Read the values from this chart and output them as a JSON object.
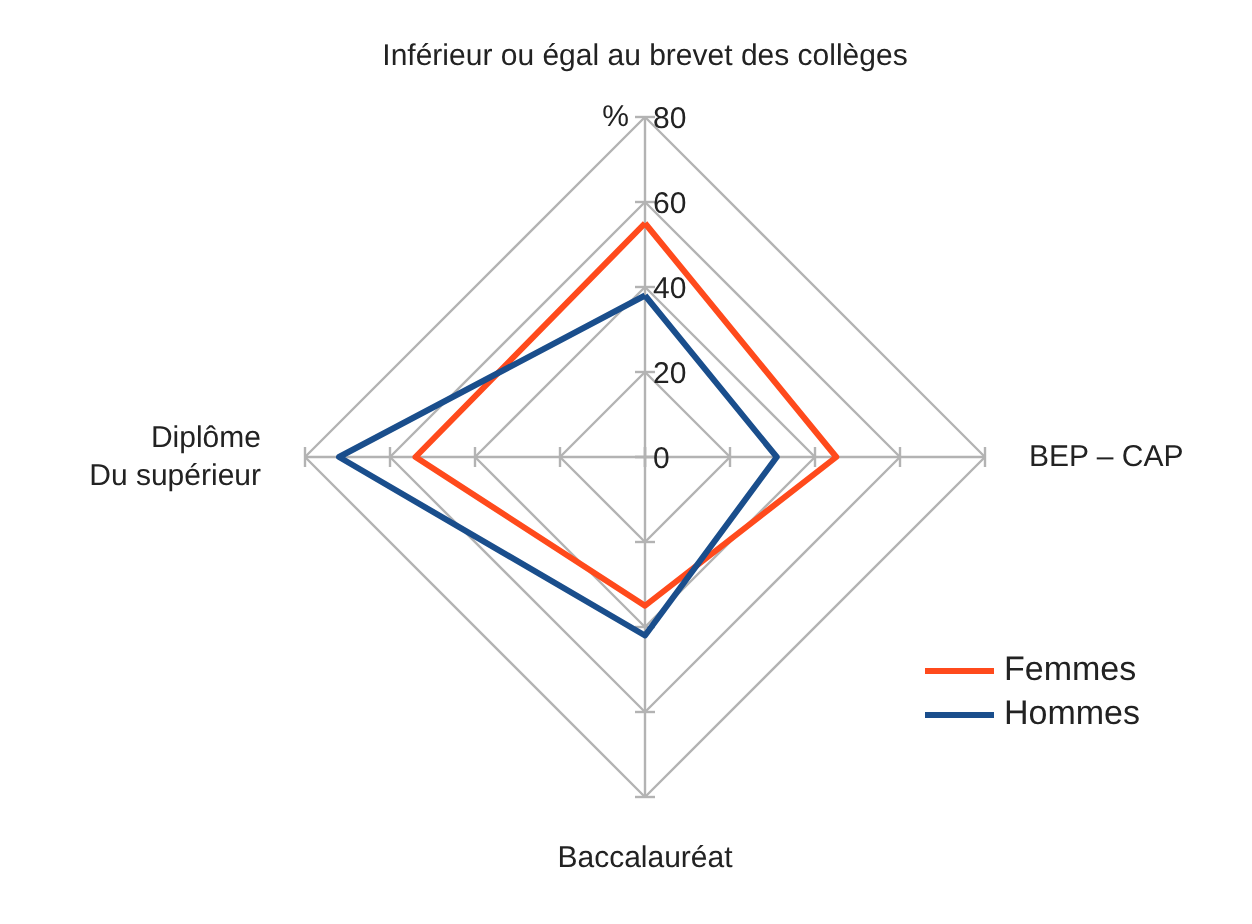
{
  "chart_data": {
    "type": "radar",
    "ylabel": "%",
    "categories": [
      "Inférieur ou égal au brevet des collèges",
      "BEP – CAP",
      "Baccalauréat",
      "Diplôme\nDu supérieur"
    ],
    "ylim": [
      0,
      80
    ],
    "yticks": [
      0,
      20,
      40,
      60,
      80
    ],
    "grid": true,
    "legend": "bottom right",
    "series": [
      {
        "name": "Femmes",
        "color": "#ff4a1c",
        "values": [
          55,
          45,
          35,
          54
        ]
      },
      {
        "name": "Hommes",
        "color": "#1a4e8c",
        "values": [
          38,
          31,
          42,
          72
        ]
      }
    ]
  }
}
